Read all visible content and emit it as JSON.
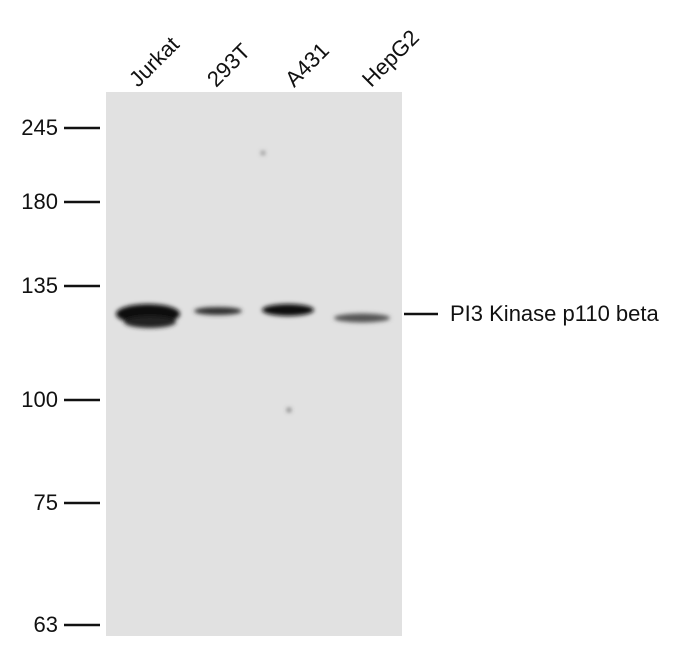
{
  "lanes": [
    "Jurkat",
    "293T",
    "A431",
    "HepG2"
  ],
  "markers": [
    245,
    180,
    135,
    100,
    75,
    63
  ],
  "band_label": "PI3 Kinase p110 beta"
}
